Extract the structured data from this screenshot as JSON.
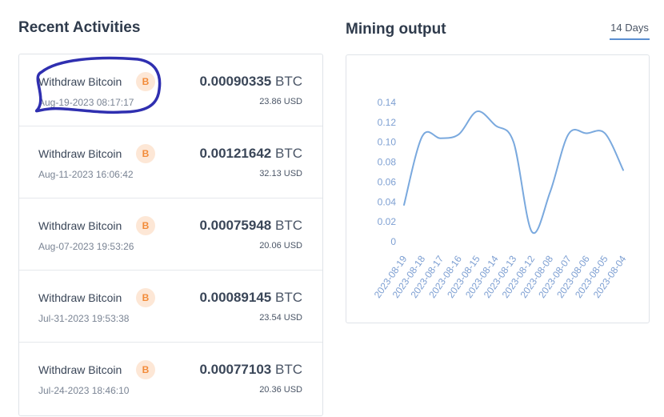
{
  "recent": {
    "title": "Recent Activities",
    "items": [
      {
        "label": "Withdraw Bitcoin",
        "badge": "B",
        "date": "Aug-19-2023 08:17:17",
        "amount": "0.00090335",
        "currency": "BTC",
        "usd": "23.86 USD"
      },
      {
        "label": "Withdraw Bitcoin",
        "badge": "B",
        "date": "Aug-11-2023 16:06:42",
        "amount": "0.00121642",
        "currency": "BTC",
        "usd": "32.13 USD"
      },
      {
        "label": "Withdraw Bitcoin",
        "badge": "B",
        "date": "Aug-07-2023 19:53:26",
        "amount": "0.00075948",
        "currency": "BTC",
        "usd": "20.06 USD"
      },
      {
        "label": "Withdraw Bitcoin",
        "badge": "B",
        "date": "Jul-31-2023 19:53:38",
        "amount": "0.00089145",
        "currency": "BTC",
        "usd": "23.54 USD"
      },
      {
        "label": "Withdraw Bitcoin",
        "badge": "B",
        "date": "Jul-24-2023 18:46:10",
        "amount": "0.00077103",
        "currency": "BTC",
        "usd": "20.36 USD"
      }
    ]
  },
  "mining": {
    "title": "Mining output",
    "period_tab": "14 Days"
  },
  "colors": {
    "line": "#7aa9de",
    "highlight_stroke": "#2f2fb0",
    "btc_orange": "#f28b39"
  },
  "chart_data": {
    "type": "line",
    "categories": [
      "2023-08-19",
      "2023-08-18",
      "2023-08-17",
      "2023-08-16",
      "2023-08-15",
      "2023-08-14",
      "2023-08-13",
      "2023-08-12",
      "2023-08-08",
      "2023-08-07",
      "2023-08-06",
      "2023-08-05",
      "2023-08-04"
    ],
    "series": [
      {
        "values": [
          0.037,
          0.106,
          0.104,
          0.108,
          0.131,
          0.117,
          0.1,
          0.01,
          0.05,
          0.108,
          0.109,
          0.109,
          0.072
        ]
      }
    ],
    "yticks": [
      "0",
      "0.02",
      "0.04",
      "0.06",
      "0.08",
      "0.10",
      "0.12",
      "0.14"
    ],
    "ylim": [
      0,
      0.14
    ],
    "grid": false
  }
}
